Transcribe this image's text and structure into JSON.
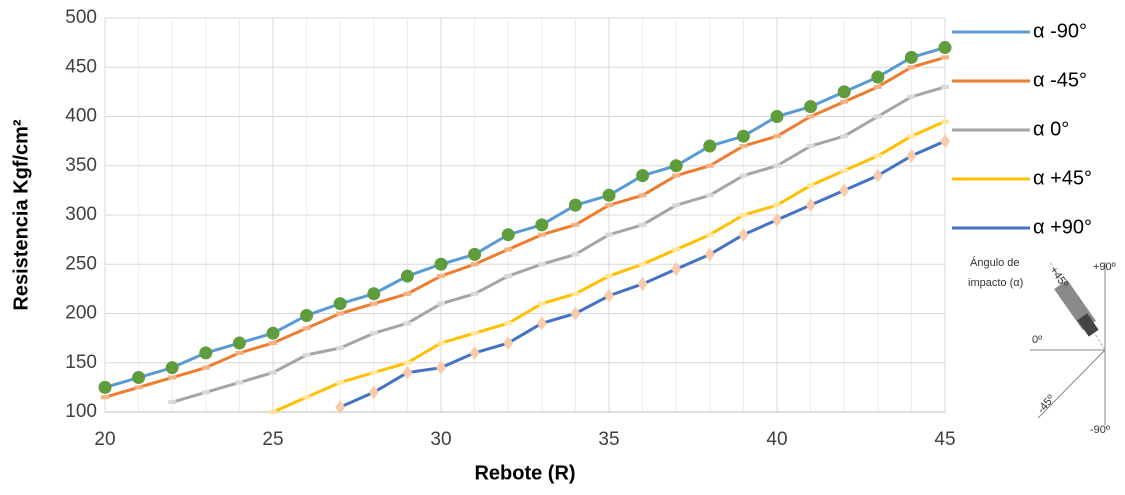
{
  "chart_data": {
    "type": "line",
    "x_label": "Rebote (R)",
    "y_label": "Resistencia Kgf/cm²",
    "x": [
      20,
      21,
      22,
      23,
      24,
      25,
      26,
      27,
      28,
      29,
      30,
      31,
      32,
      33,
      34,
      35,
      36,
      37,
      38,
      39,
      40,
      41,
      42,
      43,
      44,
      45
    ],
    "series": [
      {
        "name": "α -90°",
        "color": "#5b9bd5",
        "marker": "circle",
        "marker_color": "#5e9c3c",
        "values": [
          125,
          135,
          145,
          160,
          170,
          180,
          198,
          210,
          220,
          238,
          250,
          260,
          280,
          290,
          310,
          320,
          340,
          350,
          370,
          380,
          400,
          410,
          425,
          440,
          460,
          470
        ]
      },
      {
        "name": "α -45°",
        "color": "#ed7d31",
        "marker": "dash",
        "marker_color": "#f4b183",
        "values": [
          115,
          125,
          135,
          145,
          160,
          170,
          185,
          200,
          210,
          220,
          238,
          250,
          265,
          280,
          290,
          310,
          320,
          340,
          350,
          370,
          380,
          400,
          415,
          430,
          450,
          460
        ]
      },
      {
        "name": "α 0°",
        "color": "#a5a5a5",
        "marker": "dash",
        "marker_color": "#d9d9d9",
        "values": [
          null,
          null,
          110,
          120,
          130,
          140,
          158,
          165,
          180,
          190,
          210,
          220,
          238,
          250,
          260,
          280,
          290,
          310,
          320,
          340,
          350,
          370,
          380,
          400,
          420,
          430
        ]
      },
      {
        "name": "α +45°",
        "color": "#ffc000",
        "marker": "dash",
        "marker_color": "#ffe699",
        "values": [
          null,
          null,
          null,
          null,
          null,
          100,
          115,
          130,
          140,
          150,
          170,
          180,
          190,
          210,
          220,
          238,
          250,
          265,
          280,
          300,
          310,
          330,
          345,
          360,
          380,
          395
        ]
      },
      {
        "name": "α +90°",
        "color": "#4472c4",
        "marker": "diamond",
        "marker_color": "#f8cbad",
        "values": [
          null,
          null,
          null,
          null,
          null,
          null,
          null,
          105,
          120,
          140,
          145,
          160,
          170,
          190,
          200,
          218,
          230,
          245,
          260,
          280,
          295,
          310,
          325,
          340,
          360,
          375
        ]
      }
    ],
    "xlim": [
      20,
      45
    ],
    "xticks": [
      20,
      25,
      30,
      35,
      40,
      45
    ],
    "ylim": [
      100,
      500
    ],
    "yticks": [
      100,
      150,
      200,
      250,
      300,
      350,
      400,
      450,
      500
    ],
    "grid": true,
    "legend": "right"
  },
  "inset": {
    "title_line1": "Ángulo de",
    "title_line2": "impacto (α)",
    "labels": [
      "+90º",
      "+45º",
      "0º",
      "-45º",
      "-90º"
    ]
  }
}
